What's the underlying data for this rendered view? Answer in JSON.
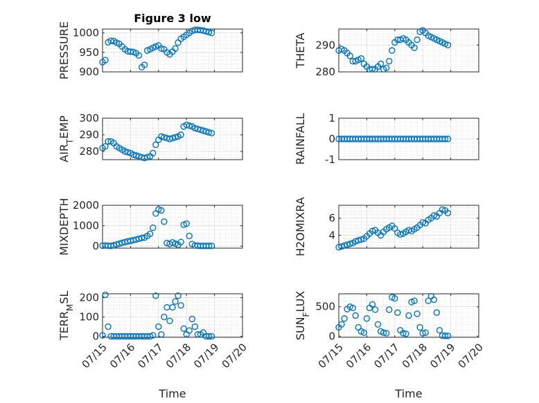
{
  "chart_data": [
    {
      "type": "scatter",
      "title": "Figure 3 low",
      "ylabel": "PRESSURE",
      "ylabel_sub": "",
      "ylabel_after": "",
      "xlabel": "",
      "xlim": [
        "07/15",
        "07/20"
      ],
      "xticks": [
        "07/15",
        "07/16",
        "07/17",
        "07/18",
        "07/19",
        "07/20"
      ],
      "ylim": [
        900,
        1010
      ],
      "yticks": [
        "900",
        "950",
        "1000"
      ],
      "grid": true,
      "color": "#0072BD",
      "x": [
        0.0,
        0.1,
        0.2,
        0.3,
        0.4,
        0.5,
        0.6,
        0.7,
        0.8,
        0.9,
        1.0,
        1.1,
        1.2,
        1.3,
        1.4,
        1.5,
        1.6,
        1.7,
        1.8,
        1.9,
        2.0,
        2.1,
        2.2,
        2.3,
        2.4,
        2.5,
        2.6,
        2.7,
        2.8,
        2.9,
        3.0,
        3.1,
        3.2,
        3.3,
        3.4,
        3.5,
        3.6,
        3.7,
        3.8,
        3.9
      ],
      "values": [
        925,
        930,
        976,
        980,
        979,
        975,
        972,
        965,
        958,
        953,
        952,
        951,
        948,
        942,
        912,
        918,
        955,
        958,
        962,
        965,
        968,
        960,
        958,
        950,
        945,
        952,
        960,
        975,
        985,
        990,
        995,
        1000,
        1005,
        1008,
        1008,
        1007,
        1006,
        1004,
        1002,
        1000
      ]
    },
    {
      "type": "scatter",
      "title": "",
      "ylabel": "THETA",
      "ylabel_sub": "",
      "ylabel_after": "",
      "xlabel": "",
      "xlim": [
        "07/15",
        "07/20"
      ],
      "xticks": [
        "07/15",
        "07/16",
        "07/17",
        "07/18",
        "07/19",
        "07/20"
      ],
      "ylim": [
        280,
        296
      ],
      "yticks": [
        "280",
        "290"
      ],
      "grid": true,
      "color": "#0072BD",
      "x": [
        0.0,
        0.1,
        0.2,
        0.3,
        0.4,
        0.5,
        0.6,
        0.7,
        0.8,
        0.9,
        1.0,
        1.1,
        1.2,
        1.3,
        1.4,
        1.5,
        1.6,
        1.7,
        1.8,
        1.9,
        2.0,
        2.1,
        2.2,
        2.3,
        2.4,
        2.5,
        2.6,
        2.7,
        2.8,
        2.9,
        3.0,
        3.1,
        3.2,
        3.3,
        3.4,
        3.5,
        3.6,
        3.7,
        3.8,
        3.9
      ],
      "values": [
        288,
        288.5,
        288,
        287,
        286,
        284,
        284,
        284.5,
        285,
        283,
        282,
        281,
        281,
        281,
        282,
        283,
        281,
        281.5,
        284,
        288,
        291,
        292,
        292,
        292.5,
        292,
        291,
        290,
        289,
        292,
        295,
        295.5,
        294.5,
        293.5,
        293,
        292.5,
        292,
        291.5,
        291,
        290.5,
        290
      ]
    },
    {
      "type": "scatter",
      "title": "",
      "ylabel": "AIR",
      "ylabel_sub": "T",
      "ylabel_after": "EMP",
      "xlabel": "",
      "xlim": [
        "07/15",
        "07/20"
      ],
      "xticks": [
        "07/15",
        "07/16",
        "07/17",
        "07/18",
        "07/19",
        "07/20"
      ],
      "ylim": [
        275,
        300
      ],
      "yticks": [
        "280",
        "290",
        "300"
      ],
      "grid": true,
      "color": "#0072BD",
      "x": [
        0.0,
        0.1,
        0.2,
        0.3,
        0.4,
        0.5,
        0.6,
        0.7,
        0.8,
        0.9,
        1.0,
        1.1,
        1.2,
        1.3,
        1.4,
        1.5,
        1.6,
        1.7,
        1.8,
        1.9,
        2.0,
        2.1,
        2.2,
        2.3,
        2.4,
        2.5,
        2.6,
        2.7,
        2.8,
        2.9,
        3.0,
        3.1,
        3.2,
        3.3,
        3.4,
        3.5,
        3.6,
        3.7,
        3.8,
        3.9
      ],
      "values": [
        282,
        283,
        286,
        286,
        285,
        283,
        282,
        281,
        280,
        279.5,
        279,
        278,
        277.5,
        277,
        276.5,
        276,
        276.5,
        277,
        279,
        284,
        287,
        289,
        288.5,
        288,
        287.5,
        288,
        288.5,
        289,
        290,
        295,
        296,
        295.5,
        295,
        294,
        293.5,
        293,
        292.5,
        292,
        291.5,
        291
      ]
    },
    {
      "type": "scatter",
      "title": "",
      "ylabel": "RAINFALL",
      "ylabel_sub": "",
      "ylabel_after": "",
      "xlabel": "",
      "xlim": [
        "07/15",
        "07/20"
      ],
      "xticks": [
        "07/15",
        "07/16",
        "07/17",
        "07/18",
        "07/19",
        "07/20"
      ],
      "ylim": [
        -1,
        1
      ],
      "yticks": [
        "-1",
        "0",
        "1"
      ],
      "grid": true,
      "color": "#0072BD",
      "x": [
        0.0,
        0.1,
        0.2,
        0.3,
        0.4,
        0.5,
        0.6,
        0.7,
        0.8,
        0.9,
        1.0,
        1.1,
        1.2,
        1.3,
        1.4,
        1.5,
        1.6,
        1.7,
        1.8,
        1.9,
        2.0,
        2.1,
        2.2,
        2.3,
        2.4,
        2.5,
        2.6,
        2.7,
        2.8,
        2.9,
        3.0,
        3.1,
        3.2,
        3.3,
        3.4,
        3.5,
        3.6,
        3.7,
        3.8,
        3.9
      ],
      "values": [
        0,
        0,
        0,
        0,
        0,
        0,
        0,
        0,
        0,
        0,
        0,
        0,
        0,
        0,
        0,
        0,
        0,
        0,
        0,
        0,
        0,
        0,
        0,
        0,
        0,
        0,
        0,
        0,
        0,
        0,
        0,
        0,
        0,
        0,
        0,
        0,
        0,
        0,
        0,
        0
      ]
    },
    {
      "type": "scatter",
      "title": "",
      "ylabel": "MIXDEPTH",
      "ylabel_sub": "",
      "ylabel_after": "",
      "xlabel": "",
      "xlim": [
        "07/15",
        "07/20"
      ],
      "xticks": [
        "07/15",
        "07/16",
        "07/17",
        "07/18",
        "07/19",
        "07/20"
      ],
      "ylim": [
        -100,
        2000
      ],
      "yticks": [
        "0",
        "1000",
        "2000"
      ],
      "grid": true,
      "color": "#0072BD",
      "x": [
        0.0,
        0.1,
        0.2,
        0.3,
        0.4,
        0.5,
        0.6,
        0.7,
        0.8,
        0.9,
        1.0,
        1.1,
        1.2,
        1.3,
        1.4,
        1.5,
        1.6,
        1.7,
        1.8,
        1.9,
        2.0,
        2.1,
        2.2,
        2.3,
        2.4,
        2.5,
        2.6,
        2.7,
        2.8,
        2.9,
        3.0,
        3.1,
        3.2,
        3.3,
        3.4,
        3.5,
        3.6,
        3.7,
        3.8,
        3.9
      ],
      "values": [
        20,
        30,
        15,
        10,
        40,
        80,
        120,
        160,
        200,
        230,
        260,
        290,
        320,
        360,
        400,
        420,
        500,
        600,
        900,
        1600,
        1800,
        1750,
        1200,
        150,
        100,
        180,
        120,
        60,
        200,
        1050,
        1100,
        500,
        100,
        30,
        20,
        10,
        10,
        10,
        10,
        10
      ]
    },
    {
      "type": "scatter",
      "title": "",
      "ylabel": "H2OMIXRA",
      "ylabel_sub": "",
      "ylabel_after": "",
      "xlabel": "",
      "xlim": [
        "07/15",
        "07/20"
      ],
      "xticks": [
        "07/15",
        "07/16",
        "07/17",
        "07/18",
        "07/19",
        "07/20"
      ],
      "ylim": [
        2.5,
        7.5
      ],
      "yticks": [
        "4",
        "6"
      ],
      "grid": true,
      "color": "#0072BD",
      "x": [
        0.0,
        0.1,
        0.2,
        0.3,
        0.4,
        0.5,
        0.6,
        0.7,
        0.8,
        0.9,
        1.0,
        1.1,
        1.2,
        1.3,
        1.4,
        1.5,
        1.6,
        1.7,
        1.8,
        1.9,
        2.0,
        2.1,
        2.2,
        2.3,
        2.4,
        2.5,
        2.6,
        2.7,
        2.8,
        2.9,
        3.0,
        3.1,
        3.2,
        3.3,
        3.4,
        3.5,
        3.6,
        3.7,
        3.8,
        3.9
      ],
      "values": [
        2.6,
        2.7,
        2.8,
        2.9,
        3.0,
        3.1,
        3.3,
        3.4,
        3.5,
        3.6,
        3.9,
        4.2,
        4.5,
        4.6,
        4.3,
        4.0,
        4.4,
        4.7,
        4.9,
        5.1,
        4.8,
        4.3,
        4.1,
        4.2,
        4.4,
        4.6,
        4.5,
        4.7,
        4.9,
        5.2,
        5.5,
        5.4,
        5.8,
        6.0,
        6.3,
        6.2,
        6.6,
        7.0,
        6.9,
        6.6
      ]
    },
    {
      "type": "scatter",
      "title": "",
      "ylabel": "TERR",
      "ylabel_sub": "M",
      "ylabel_after": "SL",
      "xlabel": "Time",
      "xlim": [
        "07/15",
        "07/20"
      ],
      "xticks": [
        "07/15",
        "07/16",
        "07/17",
        "07/18",
        "07/19",
        "07/20"
      ],
      "ylim": [
        -5,
        220
      ],
      "yticks": [
        "0",
        "100",
        "200"
      ],
      "grid": true,
      "color": "#0072BD",
      "x": [
        0.0,
        0.1,
        0.2,
        0.3,
        0.4,
        0.5,
        0.6,
        0.7,
        0.8,
        0.9,
        1.0,
        1.1,
        1.2,
        1.3,
        1.4,
        1.5,
        1.6,
        1.7,
        1.8,
        1.9,
        2.0,
        2.1,
        2.2,
        2.3,
        2.4,
        2.5,
        2.6,
        2.7,
        2.8,
        2.9,
        3.0,
        3.1,
        3.2,
        3.3,
        3.4,
        3.5,
        3.6,
        3.7,
        3.8,
        3.9
      ],
      "values": [
        5,
        215,
        50,
        0,
        0,
        0,
        0,
        0,
        0,
        0,
        0,
        0,
        0,
        0,
        0,
        0,
        0,
        0,
        5,
        210,
        50,
        10,
        100,
        150,
        80,
        150,
        180,
        210,
        160,
        40,
        10,
        30,
        90,
        50,
        10,
        10,
        20,
        0,
        0,
        0
      ]
    },
    {
      "type": "scatter",
      "title": "",
      "ylabel": "SUN",
      "ylabel_sub": "F",
      "ylabel_after": "LUX",
      "xlabel": "Time",
      "xlim": [
        "07/15",
        "07/20"
      ],
      "xticks": [
        "07/15",
        "07/16",
        "07/17",
        "07/18",
        "07/19",
        "07/20"
      ],
      "ylim": [
        -20,
        720
      ],
      "yticks": [
        "0",
        "500"
      ],
      "grid": true,
      "color": "#0072BD",
      "x": [
        0.0,
        0.1,
        0.2,
        0.3,
        0.4,
        0.5,
        0.6,
        0.7,
        0.8,
        0.9,
        1.0,
        1.1,
        1.2,
        1.3,
        1.4,
        1.5,
        1.6,
        1.7,
        1.8,
        1.9,
        2.0,
        2.1,
        2.2,
        2.3,
        2.4,
        2.5,
        2.6,
        2.7,
        2.8,
        2.9,
        3.0,
        3.1,
        3.2,
        3.3,
        3.4,
        3.5,
        3.6,
        3.7,
        3.8,
        3.9
      ],
      "values": [
        150,
        200,
        300,
        460,
        500,
        480,
        350,
        150,
        80,
        60,
        300,
        480,
        540,
        450,
        200,
        80,
        60,
        50,
        450,
        660,
        640,
        400,
        100,
        50,
        40,
        350,
        580,
        600,
        380,
        150,
        50,
        60,
        600,
        680,
        620,
        400,
        100,
        10,
        5,
        5
      ]
    }
  ]
}
